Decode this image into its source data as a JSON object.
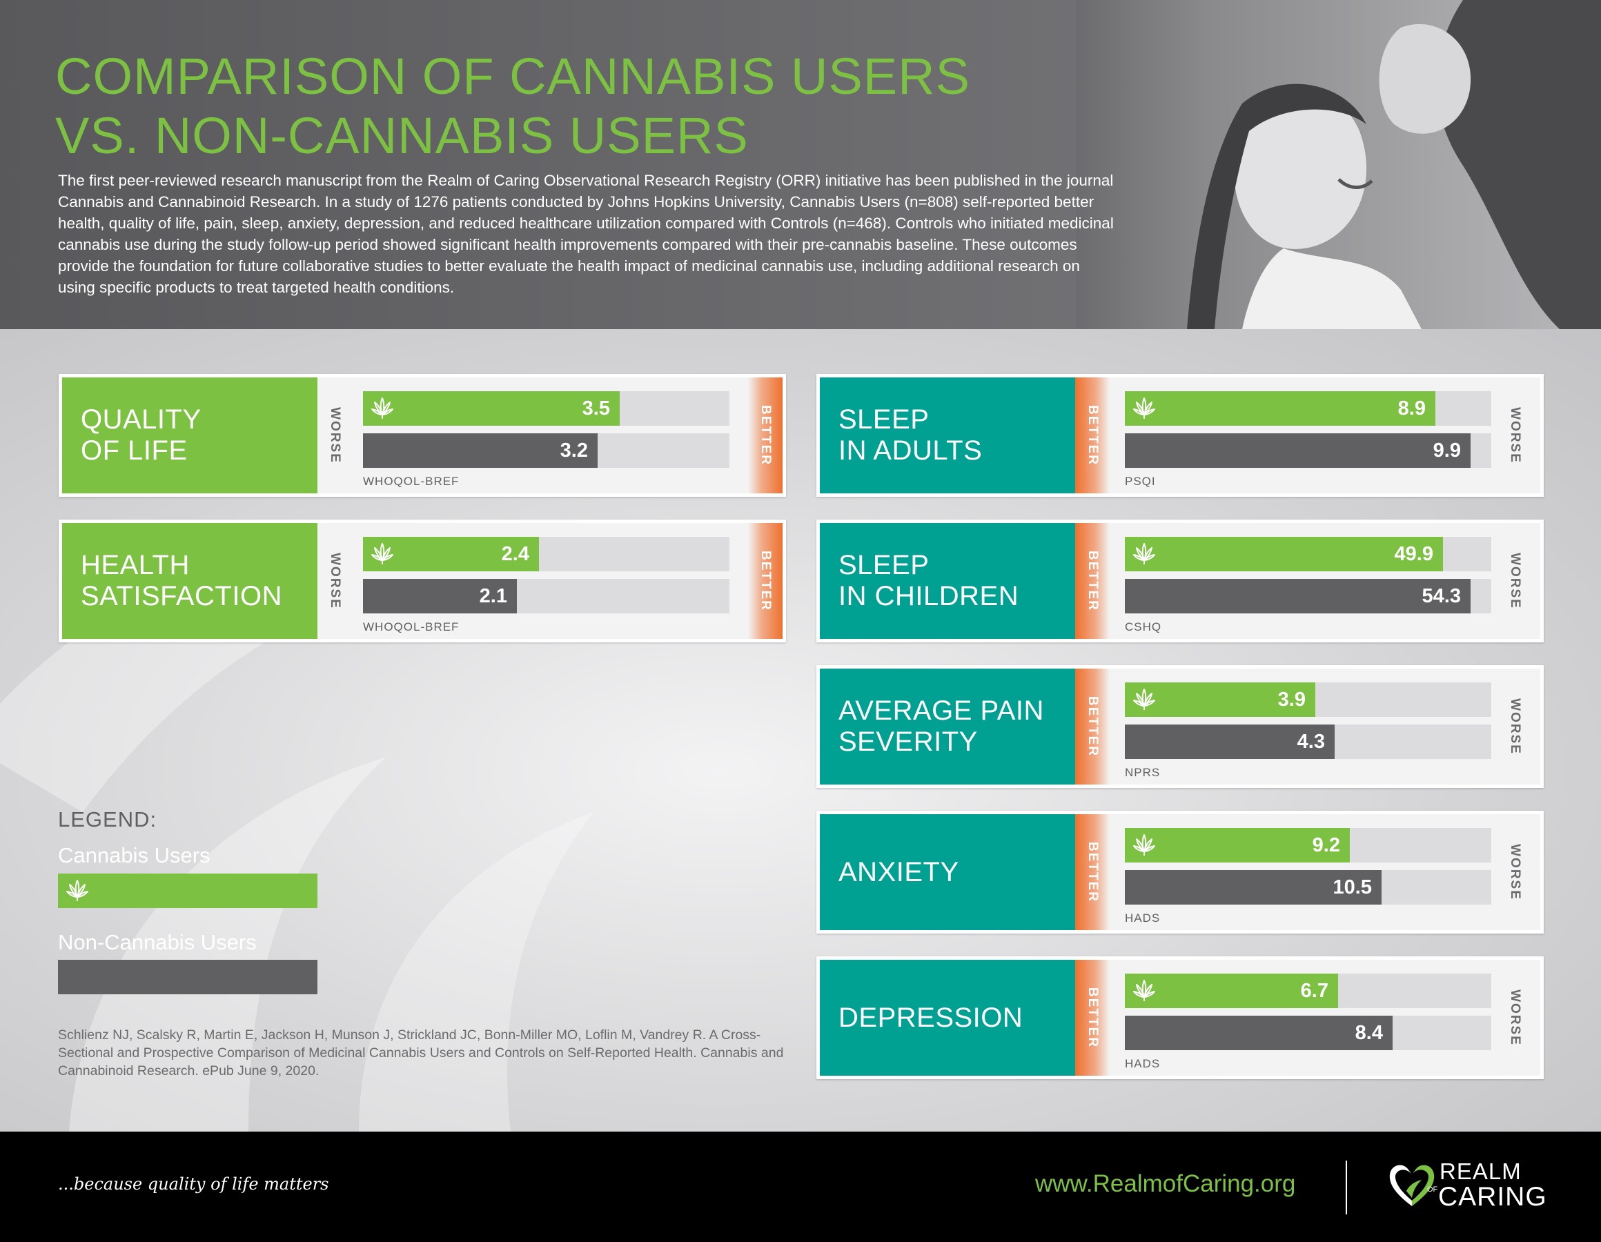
{
  "header": {
    "title_line1": "COMPARISON OF CANNABIS USERS",
    "title_line2": "VS. NON-CANNABIS USERS",
    "intro": "The first peer-reviewed research manuscript from the Realm of Caring Observational Research Registry (ORR) initiative has been published in the journal Cannabis and Cannabinoid Research. In a study of 1276 patients conducted by Johns Hopkins University, Cannabis Users (n=808) self-reported better health, quality of life, pain, sleep, anxiety, depression, and reduced healthcare utilization compared with Controls (n=468). Controls who initiated medicinal cannabis use during the study follow-up period showed significant health improvements compared with their pre-cannabis baseline. These outcomes provide the foundation for future collaborative studies to better evaluate the health impact of medicinal cannabis use, including additional research on using specific products to treat targeted health conditions."
  },
  "chart_data": [
    {
      "type": "bar",
      "title": "QUALITY\nOF LIFE",
      "scale": "WHOQOL-BREF",
      "series": [
        {
          "name": "Cannabis Users",
          "value": 3.5
        },
        {
          "name": "Non-Cannabis Users",
          "value": 3.2
        }
      ],
      "low_end": "WORSE",
      "high_end": "BETTER",
      "max": 5.0
    },
    {
      "type": "bar",
      "title": "HEALTH\nSATISFACTION",
      "scale": "WHOQOL-BREF",
      "series": [
        {
          "name": "Cannabis Users",
          "value": 2.4
        },
        {
          "name": "Non-Cannabis Users",
          "value": 2.1
        }
      ],
      "low_end": "WORSE",
      "high_end": "BETTER",
      "max": 5.0
    },
    {
      "type": "bar",
      "title": "SLEEP\nIN ADULTS",
      "scale": "PSQI",
      "series": [
        {
          "name": "Cannabis Users",
          "value": 8.9
        },
        {
          "name": "Non-Cannabis Users",
          "value": 9.9
        }
      ],
      "low_end": "BETTER",
      "high_end": "WORSE",
      "max": 10.5
    },
    {
      "type": "bar",
      "title": "SLEEP\nIN CHILDREN",
      "scale": "CSHQ",
      "series": [
        {
          "name": "Cannabis Users",
          "value": 49.9
        },
        {
          "name": "Non-Cannabis Users",
          "value": 54.3
        }
      ],
      "low_end": "BETTER",
      "high_end": "WORSE",
      "max": 57.5
    },
    {
      "type": "bar",
      "title": "AVERAGE PAIN\nSEVERITY",
      "scale": "NPRS",
      "series": [
        {
          "name": "Cannabis Users",
          "value": 3.9
        },
        {
          "name": "Non-Cannabis Users",
          "value": 4.3
        }
      ],
      "low_end": "BETTER",
      "high_end": "WORSE",
      "max": 7.5
    },
    {
      "type": "bar",
      "title": "ANXIETY",
      "scale": "HADS",
      "series": [
        {
          "name": "Cannabis Users",
          "value": 9.2
        },
        {
          "name": "Non-Cannabis Users",
          "value": 10.5
        }
      ],
      "low_end": "BETTER",
      "high_end": "WORSE",
      "max": 15.0
    },
    {
      "type": "bar",
      "title": "DEPRESSION",
      "scale": "HADS",
      "series": [
        {
          "name": "Cannabis Users",
          "value": 6.7
        },
        {
          "name": "Non-Cannabis Users",
          "value": 8.4
        }
      ],
      "low_end": "BETTER",
      "high_end": "WORSE",
      "max": 11.5
    }
  ],
  "legend": {
    "title": "LEGEND:",
    "cannabis_label": "Cannabis Users",
    "non_cannabis_label": "Non-Cannabis Users"
  },
  "citation": "Schlienz NJ, Scalsky R, Martin E, Jackson H, Munson J, Strickland JC, Bonn-Miller MO, Loflin M, Vandrey R. A Cross-Sectional and Prospective Comparison of Medicinal Cannabis Users and Controls on Self-Reported Health. Cannabis and Cannabinoid Research. ePub June 9, 2020.",
  "footer": {
    "tagline": "...because quality of life matters",
    "website": "www.RealmofCaring.org",
    "logo_line1": "REALM",
    "logo_of": "OF",
    "logo_line2": "CARING"
  },
  "colors": {
    "cannabis": "#7dc142",
    "non_cannabis": "#606063",
    "teal": "#00a193",
    "orange": "#ee702f",
    "header_bg": "#5d5d60",
    "footer_bg": "#000000"
  },
  "icons": [
    "cannabis-leaf-icon",
    "realm-of-caring-heart-icon"
  ]
}
